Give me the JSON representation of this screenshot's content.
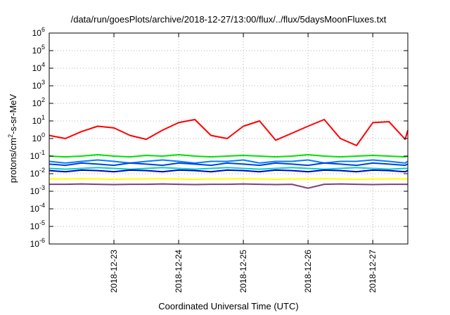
{
  "chart_data": {
    "type": "line",
    "title": "/data/run/goesPlots/archive/2018-12-27/13:00/flux/../flux/5daysMoonFluxes.txt",
    "xlabel": "Coordinated Universal Time (UTC)",
    "ylabel_base": "protons/cm",
    "ylabel_sup": "2",
    "ylabel_rest": "-s-sr-MeV",
    "y_scale": "log",
    "ylim": [
      1e-06,
      1000000.0
    ],
    "y_ticks": [
      {
        "exp": "-6",
        "value": 1e-06
      },
      {
        "exp": "-5",
        "value": 1e-05
      },
      {
        "exp": "-4",
        "value": 0.0001
      },
      {
        "exp": "-3",
        "value": 0.001
      },
      {
        "exp": "-2",
        "value": 0.01
      },
      {
        "exp": "-1",
        "value": 0.1
      },
      {
        "exp": "0",
        "value": 1
      },
      {
        "exp": "1",
        "value": 10.0
      },
      {
        "exp": "2",
        "value": 100.0
      },
      {
        "exp": "3",
        "value": 1000.0
      },
      {
        "exp": "4",
        "value": 10000.0
      },
      {
        "exp": "5",
        "value": 100000.0
      },
      {
        "exp": "6",
        "value": 1000000.0
      }
    ],
    "tick_base": "10",
    "xlim": [
      "2018-12-22 00:00",
      "2018-12-27 13:00"
    ],
    "x_ticks": [
      "2018-12-23",
      "2018-12-24",
      "2018-12-25",
      "2018-12-26",
      "2018-12-27"
    ],
    "grid": true,
    "x": [
      "2018-12-22 00:00",
      "2018-12-22 06:00",
      "2018-12-22 12:00",
      "2018-12-22 18:00",
      "2018-12-23 00:00",
      "2018-12-23 06:00",
      "2018-12-23 12:00",
      "2018-12-23 18:00",
      "2018-12-24 00:00",
      "2018-12-24 06:00",
      "2018-12-24 12:00",
      "2018-12-24 18:00",
      "2018-12-25 00:00",
      "2018-12-25 06:00",
      "2018-12-25 12:00",
      "2018-12-25 18:00",
      "2018-12-26 00:00",
      "2018-12-26 06:00",
      "2018-12-26 12:00",
      "2018-12-26 18:00",
      "2018-12-27 00:00",
      "2018-12-27 06:00",
      "2018-12-27 12:00",
      "2018-12-27 13:00"
    ],
    "series": [
      {
        "color": "#ff0000",
        "values": [
          1.5,
          1.0,
          2.5,
          5.0,
          4.0,
          1.5,
          0.9,
          3.0,
          8.0,
          12.0,
          1.5,
          1.0,
          5.0,
          10.0,
          0.8,
          2.0,
          5.0,
          12.0,
          1.0,
          0.4,
          8.0,
          9.0,
          0.9,
          3.0
        ]
      },
      {
        "color": "#00e000",
        "values": [
          0.1,
          0.09,
          0.1,
          0.12,
          0.1,
          0.09,
          0.11,
          0.1,
          0.12,
          0.1,
          0.09,
          0.1,
          0.11,
          0.1,
          0.09,
          0.1,
          0.12,
          0.1,
          0.09,
          0.1,
          0.11,
          0.1,
          0.09,
          0.1
        ]
      },
      {
        "color": "#0080ff",
        "values": [
          0.05,
          0.04,
          0.05,
          0.06,
          0.05,
          0.04,
          0.05,
          0.06,
          0.05,
          0.04,
          0.05,
          0.05,
          0.06,
          0.04,
          0.05,
          0.05,
          0.06,
          0.04,
          0.05,
          0.05,
          0.06,
          0.05,
          0.04,
          0.05
        ]
      },
      {
        "color": "#0040e0",
        "values": [
          0.035,
          0.03,
          0.04,
          0.035,
          0.03,
          0.04,
          0.035,
          0.03,
          0.04,
          0.035,
          0.03,
          0.04,
          0.035,
          0.03,
          0.04,
          0.035,
          0.03,
          0.04,
          0.035,
          0.03,
          0.04,
          0.035,
          0.03,
          0.035
        ]
      },
      {
        "color": "#00d0d0",
        "values": [
          0.02,
          0.018,
          0.02,
          0.022,
          0.02,
          0.018,
          0.02,
          0.022,
          0.02,
          0.018,
          0.02,
          0.022,
          0.02,
          0.018,
          0.02,
          0.022,
          0.02,
          0.018,
          0.02,
          0.022,
          0.02,
          0.018,
          0.02,
          0.02
        ]
      },
      {
        "color": "#0000c0",
        "values": [
          0.015,
          0.013,
          0.016,
          0.015,
          0.013,
          0.016,
          0.015,
          0.013,
          0.016,
          0.015,
          0.013,
          0.016,
          0.015,
          0.013,
          0.016,
          0.015,
          0.013,
          0.016,
          0.015,
          0.013,
          0.016,
          0.015,
          0.013,
          0.015
        ]
      },
      {
        "color": "#ffff00",
        "values": [
          0.005,
          0.005,
          0.0052,
          0.005,
          0.0048,
          0.005,
          0.005,
          0.0052,
          0.005,
          0.0048,
          0.005,
          0.005,
          0.0052,
          0.005,
          0.0048,
          0.005,
          0.005,
          0.0052,
          0.005,
          0.0048,
          0.005,
          0.005,
          0.0052,
          0.005
        ]
      },
      {
        "color": "#804080",
        "values": [
          0.0025,
          0.0025,
          0.0026,
          0.0025,
          0.0024,
          0.0025,
          0.0025,
          0.0026,
          0.0025,
          0.0024,
          0.0025,
          0.0025,
          0.0026,
          0.0025,
          0.0024,
          0.0025,
          0.0015,
          0.0025,
          0.0026,
          0.0025,
          0.0024,
          0.0025,
          0.0025,
          0.0025
        ]
      }
    ]
  }
}
